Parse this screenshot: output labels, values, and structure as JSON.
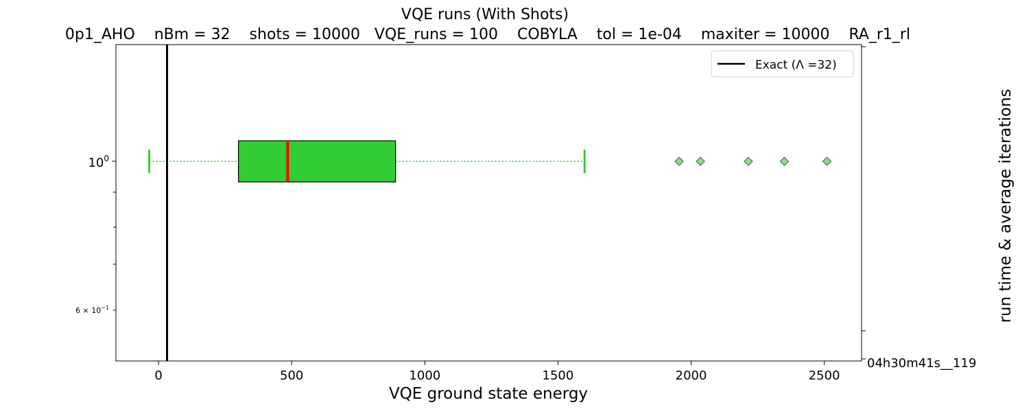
{
  "chart_data": {
    "type": "boxplot",
    "orientation": "horizontal",
    "title": "VQE runs (With Shots)",
    "subtitle": "0p1_AHO    nBm = 32    shots = 10000   VQE_runs = 100    COBYLA    tol = 1e-04    maxiter = 10000    RA_r1_rl",
    "xlabel": "VQE ground state energy",
    "ylabel_right": "run time & average iterations",
    "right_tick_label": "04h30m41s__119",
    "xlim": [
      -160,
      2640
    ],
    "x_ticks": [
      0,
      500,
      1000,
      1500,
      2000,
      2500
    ],
    "x_tick_labels": [
      "0",
      "500",
      "1000",
      "1500",
      "2000",
      "2500"
    ],
    "y_scale": "log",
    "ylim": [
      0.5,
      1.5
    ],
    "y_tick_major_label": "10^0",
    "y_tick_minor_label": "6×10^-1",
    "box": {
      "position": 1.0,
      "whisker_low": -35,
      "q1": 300,
      "median": 485,
      "q3": 890,
      "whisker_high": 1600,
      "outliers": [
        1955,
        2035,
        2215,
        2350,
        2510
      ],
      "box_color": "#32cd32",
      "median_color": "#ff0000",
      "whisker_color": "#32cd32",
      "outlier_color": "#90d890"
    },
    "exact_line": {
      "x": 32,
      "color": "#000000",
      "legend": "Exact (Λ =32)"
    },
    "legend_position": "top-right",
    "grid": false
  }
}
